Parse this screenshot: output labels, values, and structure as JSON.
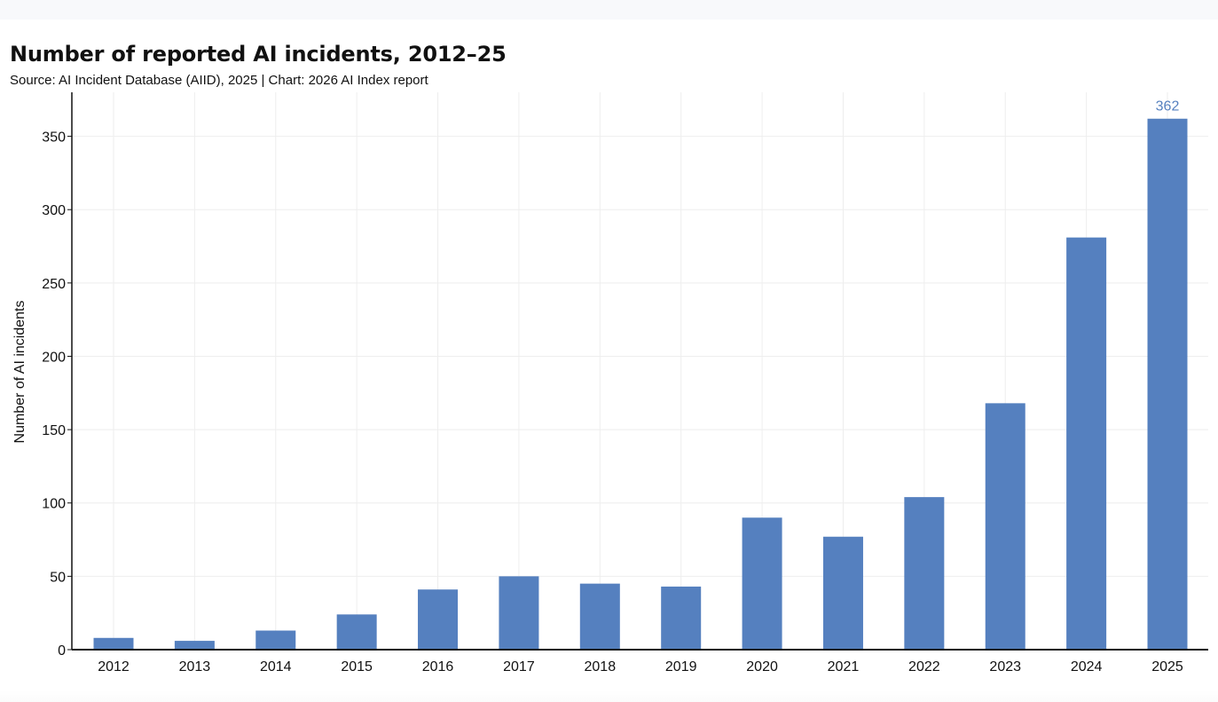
{
  "chart_data": {
    "type": "bar",
    "title": "Number of reported AI incidents, 2012–25",
    "subtitle": "Source: AI Incident Database (AIID), 2025 | Chart: 2026 AI Index report",
    "xlabel": "",
    "ylabel": "Number of AI incidents",
    "categories": [
      "2012",
      "2013",
      "2014",
      "2015",
      "2016",
      "2017",
      "2018",
      "2019",
      "2020",
      "2021",
      "2022",
      "2023",
      "2024",
      "2025"
    ],
    "values": [
      8,
      6,
      13,
      24,
      41,
      50,
      45,
      43,
      90,
      77,
      104,
      168,
      281,
      362
    ],
    "ylim": [
      0,
      380
    ],
    "yticks": [
      0,
      50,
      100,
      150,
      200,
      250,
      300,
      350
    ],
    "grid": true,
    "data_labels": [
      {
        "category": "2025",
        "text": "362"
      }
    ],
    "colors": {
      "bar": "#5580bf",
      "data_label": "#5580bf",
      "grid": "#eeeeee",
      "axis": "#111111",
      "text": "#111111"
    }
  }
}
